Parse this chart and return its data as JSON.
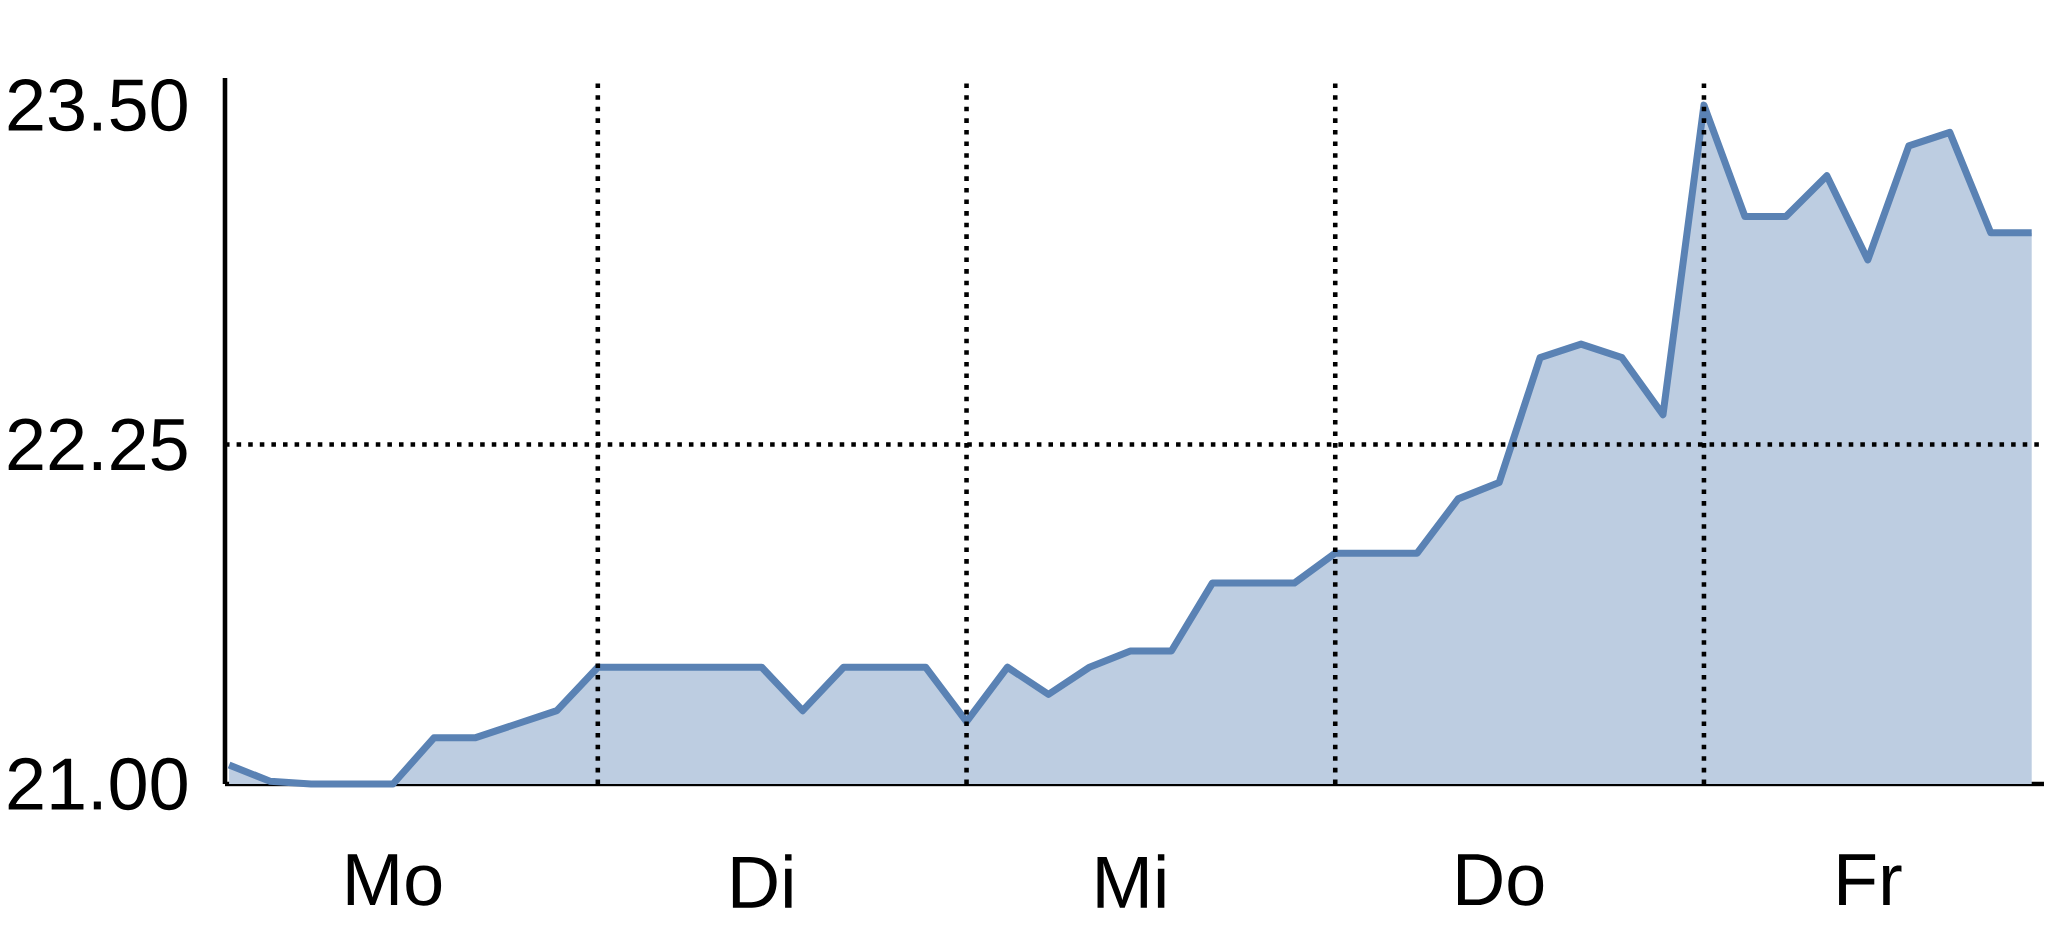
{
  "chart_data": {
    "type": "area",
    "color": "#5a82b4",
    "categories": [
      null,
      null,
      null,
      null,
      "Mo",
      null,
      null,
      null,
      null,
      null,
      null,
      null,
      null,
      "Di",
      null,
      null,
      null,
      null,
      null,
      null,
      null,
      null,
      "Mi",
      null,
      null,
      null,
      null,
      null,
      null,
      null,
      null,
      "Do",
      null,
      null,
      null,
      null,
      null,
      null,
      null,
      null,
      "Fr",
      null,
      null,
      null,
      null
    ],
    "values": [
      21.07,
      21.01,
      21.0,
      21.0,
      21.0,
      21.17,
      21.17,
      21.22,
      21.27,
      21.43,
      21.43,
      21.43,
      21.43,
      21.43,
      21.27,
      21.43,
      21.43,
      21.43,
      21.23,
      21.43,
      21.33,
      21.43,
      21.49,
      21.49,
      21.74,
      21.74,
      21.74,
      21.85,
      21.85,
      21.85,
      22.05,
      22.11,
      22.57,
      22.62,
      22.57,
      22.36,
      23.5,
      23.09,
      23.09,
      23.24,
      22.93,
      23.35,
      23.4,
      23.03,
      23.03
    ],
    "ylim": [
      21,
      23.6
    ],
    "yticks": [
      {
        "value": 21,
        "label": "21.00"
      },
      {
        "value": 22.25,
        "label": "22.25"
      },
      {
        "value": 23.5,
        "label": "23.50"
      }
    ],
    "ref_lines": [
      {
        "axis": "y",
        "value": 22.25,
        "color": "#000000",
        "line_style": "dotted"
      }
    ]
  }
}
